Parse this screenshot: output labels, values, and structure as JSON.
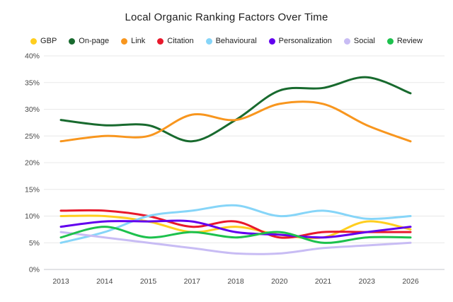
{
  "title": "Local Organic Ranking Factors Over Time",
  "legend": [
    {
      "label": "GBP",
      "color": "#FFCE1F"
    },
    {
      "label": "On-page",
      "color": "#186A2E"
    },
    {
      "label": "Link",
      "color": "#F8961E"
    },
    {
      "label": "Citation",
      "color": "#E8192C"
    },
    {
      "label": "Behavioural",
      "color": "#86D5F8"
    },
    {
      "label": "Personalization",
      "color": "#6200EE"
    },
    {
      "label": "Social",
      "color": "#C8BCF4"
    },
    {
      "label": "Review",
      "color": "#1DC14D"
    }
  ],
  "chart_data": {
    "type": "line",
    "title": "Local Organic Ranking Factors Over Time",
    "xlabel": "",
    "ylabel": "",
    "x": [
      "2013",
      "2014",
      "2015",
      "2017",
      "2018",
      "2020",
      "2021",
      "2023",
      "2026"
    ],
    "yticks": [
      "40%",
      "35%",
      "30%",
      "25%",
      "20%",
      "15%",
      "10%",
      "5%",
      "0%"
    ],
    "ylim": [
      0,
      40
    ],
    "grid": true,
    "legend_position": "top",
    "series": [
      {
        "name": "GBP",
        "color": "#FFCE1F",
        "values": [
          10,
          10,
          9,
          7,
          8,
          6.5,
          6,
          9,
          7.5
        ]
      },
      {
        "name": "On-page",
        "color": "#186A2E",
        "values": [
          28,
          27,
          27,
          24,
          28,
          33.5,
          34,
          36,
          33
        ]
      },
      {
        "name": "Link",
        "color": "#F8961E",
        "values": [
          24,
          25,
          25,
          29,
          28,
          31,
          31,
          27,
          24
        ]
      },
      {
        "name": "Citation",
        "color": "#E8192C",
        "values": [
          11,
          11,
          10,
          8,
          9,
          6,
          7,
          7,
          7
        ]
      },
      {
        "name": "Behavioural",
        "color": "#86D5F8",
        "values": [
          5,
          7,
          10,
          11,
          12,
          10,
          11,
          9.5,
          10
        ]
      },
      {
        "name": "Personalization",
        "color": "#6200EE",
        "values": [
          8,
          9,
          9,
          9,
          7,
          6.5,
          6,
          7,
          8
        ]
      },
      {
        "name": "Social",
        "color": "#C8BCF4",
        "values": [
          7,
          6,
          5,
          4,
          3,
          3,
          4,
          4.5,
          5
        ]
      },
      {
        "name": "Review",
        "color": "#1DC14D",
        "values": [
          6,
          8,
          6,
          7,
          6,
          7,
          5,
          6,
          6
        ]
      }
    ]
  },
  "axis_colors": {
    "grid": "#E8E8E8",
    "zero_line": "#C4C7CC",
    "tick_text": "#474747"
  }
}
